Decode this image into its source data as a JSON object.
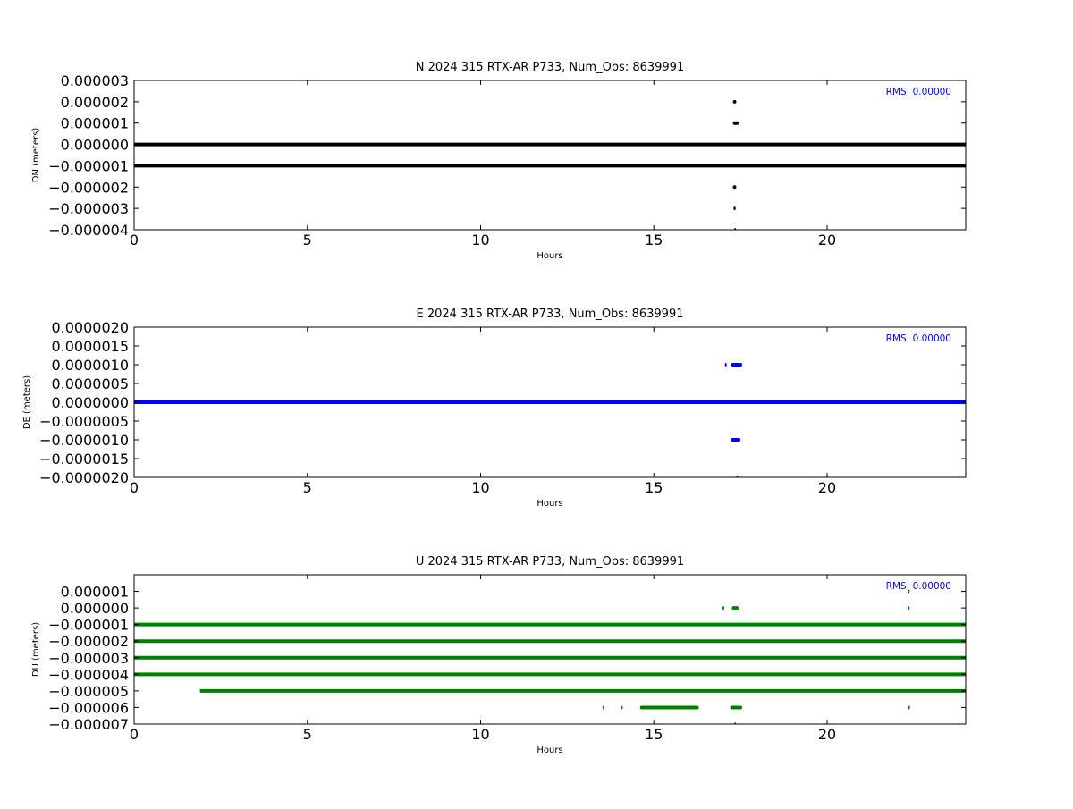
{
  "chart_data": [
    {
      "type": "scatter",
      "title": "N 2024 315 RTX-AR  P733, Num_Obs: 8639991",
      "xlabel": "Hours",
      "ylabel": "DN (meters)",
      "xlim": [
        0,
        24
      ],
      "ylim": [
        -4e-06,
        3e-06
      ],
      "xticks": [
        "0",
        "5",
        "10",
        "15",
        "20"
      ],
      "xtick_values": [
        0,
        5,
        10,
        15,
        20
      ],
      "yticks": [
        "0.000003",
        "0.000002",
        "0.000001",
        "0.000000",
        "−0.000001",
        "−0.000002",
        "−0.000003",
        "−0.000004"
      ],
      "ytick_values": [
        3e-06,
        2e-06,
        1e-06,
        0,
        -1e-06,
        -2e-06,
        -3e-06,
        -4e-06
      ],
      "annotation": "RMS:  0.00000",
      "color": "#000000",
      "annotation_color": "#0000ff",
      "grid": false,
      "bands": [
        {
          "y": 0,
          "x0": 0,
          "x1": 24
        },
        {
          "y": -1e-06,
          "x0": 0,
          "x1": 24
        }
      ],
      "clusters": [
        {
          "y": 2e-06,
          "x0": 17.28,
          "x1": 17.38
        },
        {
          "y": 1e-06,
          "x0": 17.28,
          "x1": 17.45
        },
        {
          "y": -2e-06,
          "x0": 17.28,
          "x1": 17.38
        },
        {
          "y": -3e-06,
          "x0": 17.3,
          "x1": 17.36
        },
        {
          "y": -4e-06,
          "x0": 17.32,
          "x1": 17.34
        }
      ]
    },
    {
      "type": "scatter",
      "title": "E 2024 315 RTX-AR  P733, Num_Obs: 8639991",
      "xlabel": "Hours",
      "ylabel": "DE (meters)",
      "xlim": [
        0,
        24
      ],
      "ylim": [
        -2e-06,
        2e-06
      ],
      "xticks": [
        "0",
        "5",
        "10",
        "15",
        "20"
      ],
      "xtick_values": [
        0,
        5,
        10,
        15,
        20
      ],
      "yticks": [
        "0.0000020",
        "0.0000015",
        "0.0000010",
        "0.0000005",
        "0.0000000",
        "−0.0000005",
        "−0.0000010",
        "−0.0000015",
        "−0.0000020"
      ],
      "ytick_values": [
        2e-06,
        1.5e-06,
        1e-06,
        5e-07,
        0,
        -5e-07,
        -1e-06,
        -1.5e-06,
        -2e-06
      ],
      "annotation": "RMS:  0.00000",
      "color": "#0000ff",
      "annotation_color": "#0000ff",
      "grid": false,
      "bands": [
        {
          "y": 0,
          "x0": 0,
          "x1": 24
        }
      ],
      "clusters": [
        {
          "y": 1e-06,
          "x0": 17.05,
          "x1": 17.1
        },
        {
          "y": 1e-06,
          "x0": 17.22,
          "x1": 17.55
        },
        {
          "y": -1e-06,
          "x0": 17.22,
          "x1": 17.5
        },
        {
          "y": -2e-06,
          "x0": 17.38,
          "x1": 17.42
        }
      ]
    },
    {
      "type": "scatter",
      "title": "U 2024 315 RTX-AR  P733, Num_Obs: 8639991",
      "xlabel": "Hours",
      "ylabel": "DU (meters)",
      "xlim": [
        0,
        24
      ],
      "ylim": [
        -7e-06,
        2e-06
      ],
      "xticks": [
        "0",
        "5",
        "10",
        "15",
        "20"
      ],
      "xtick_values": [
        0,
        5,
        10,
        15,
        20
      ],
      "yticks": [
        "0.000001",
        "0.000000",
        "−0.000001",
        "−0.000002",
        "−0.000003",
        "−0.000004",
        "−0.000005",
        "−0.000006",
        "−0.000007"
      ],
      "ytick_values": [
        1e-06,
        0,
        -1e-06,
        -2e-06,
        -3e-06,
        -4e-06,
        -5e-06,
        -6e-06,
        -7e-06
      ],
      "annotation": "RMS:  0.00000",
      "color": "#008000",
      "annotation_color": "#0000ff",
      "grid": false,
      "bands": [
        {
          "y": -1e-06,
          "x0": 0,
          "x1": 24
        },
        {
          "y": -2e-06,
          "x0": 0,
          "x1": 24
        },
        {
          "y": -3e-06,
          "x0": 0,
          "x1": 24
        },
        {
          "y": -4e-06,
          "x0": 0,
          "x1": 24
        },
        {
          "y": -5e-06,
          "x0": 1.9,
          "x1": 24
        }
      ],
      "clusters": [
        {
          "y": 0,
          "x0": 17.25,
          "x1": 17.45
        },
        {
          "y": 0,
          "x0": 16.98,
          "x1": 17.02
        },
        {
          "y": 0,
          "x0": 22.33,
          "x1": 22.37
        },
        {
          "y": 1e-06,
          "x0": 22.33,
          "x1": 22.37
        },
        {
          "y": -6e-06,
          "x0": 14.6,
          "x1": 16.3
        },
        {
          "y": -6e-06,
          "x0": 17.2,
          "x1": 17.55
        },
        {
          "y": -6e-06,
          "x0": 13.52,
          "x1": 13.56
        },
        {
          "y": -6e-06,
          "x0": 14.05,
          "x1": 14.09
        },
        {
          "y": -6e-06,
          "x0": 22.34,
          "x1": 22.38
        },
        {
          "y": -7e-06,
          "x0": 17.32,
          "x1": 17.36
        }
      ]
    }
  ]
}
